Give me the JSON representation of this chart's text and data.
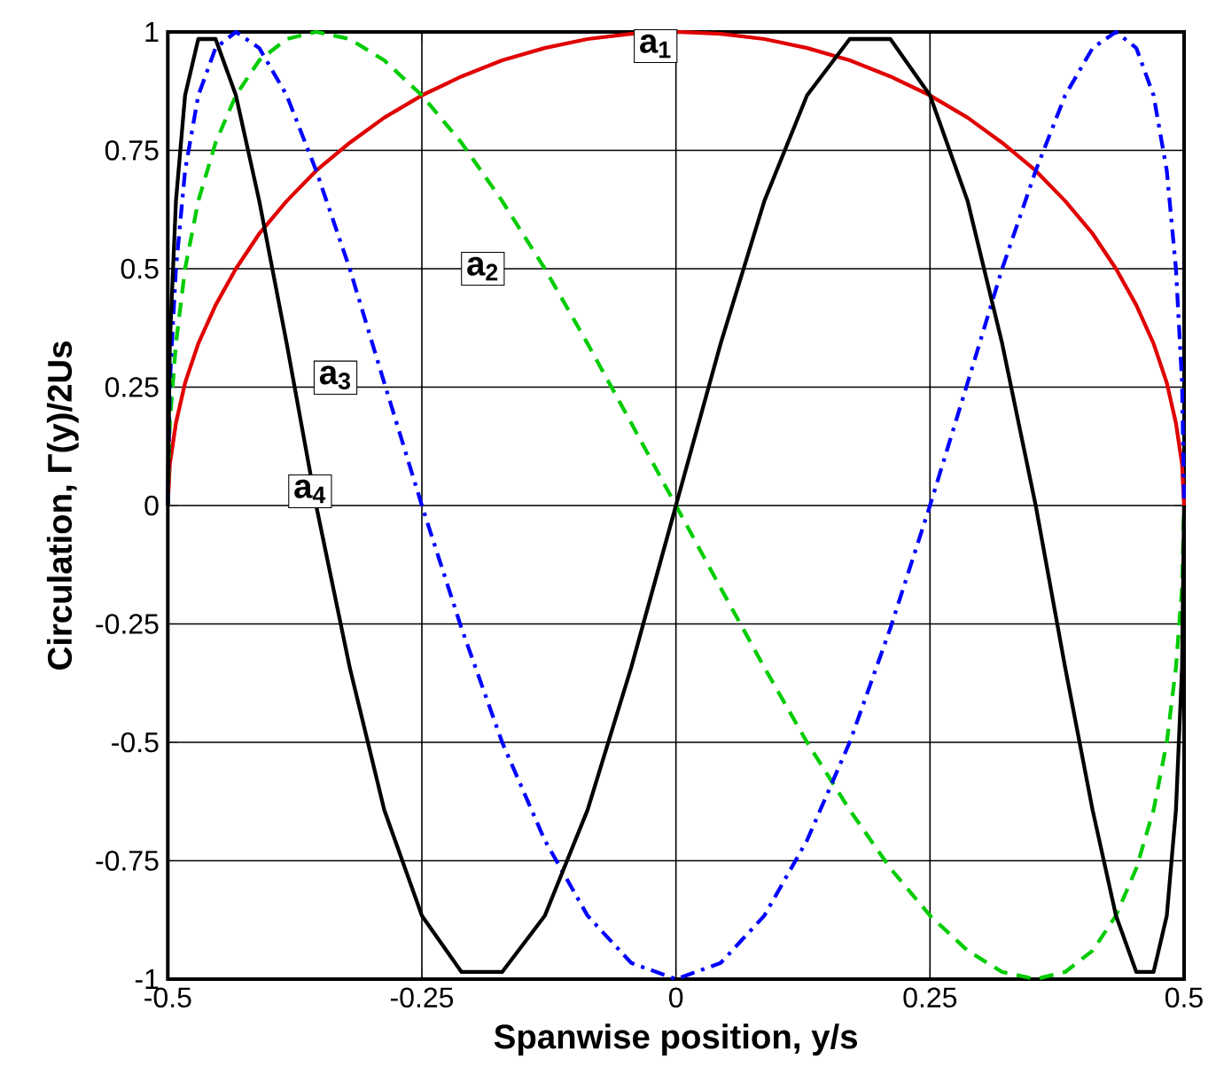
{
  "chart_data": {
    "type": "line",
    "xlabel": "Spanwise position, y/s",
    "ylabel": "Circulation, Γ(y)/2Us",
    "x": [
      -0.5,
      -0.498,
      -0.492,
      -0.483,
      -0.47,
      -0.453,
      -0.433,
      -0.41,
      -0.383,
      -0.354,
      -0.321,
      -0.287,
      -0.25,
      -0.211,
      -0.171,
      -0.129,
      -0.087,
      -0.044,
      0,
      0.044,
      0.087,
      0.129,
      0.171,
      0.211,
      0.25,
      0.287,
      0.321,
      0.354,
      0.383,
      0.41,
      0.433,
      0.453,
      0.47,
      0.483,
      0.492,
      0.498,
      0.5
    ],
    "series": [
      {
        "color": "#e00000",
        "line_style": "solid",
        "values": [
          0,
          0.087,
          0.174,
          0.259,
          0.342,
          0.423,
          0.5,
          0.574,
          0.643,
          0.707,
          0.766,
          0.819,
          0.866,
          0.906,
          0.94,
          0.966,
          0.985,
          0.996,
          1,
          0.996,
          0.985,
          0.966,
          0.94,
          0.906,
          0.866,
          0.819,
          0.766,
          0.707,
          0.643,
          0.574,
          0.5,
          0.423,
          0.342,
          0.259,
          0.174,
          0.087,
          0
        ]
      },
      {
        "color": "#00cc00",
        "line_style": "dashed",
        "values": [
          0,
          0.174,
          0.342,
          0.5,
          0.643,
          0.766,
          0.866,
          0.94,
          0.985,
          1,
          0.985,
          0.94,
          0.866,
          0.766,
          0.643,
          0.5,
          0.342,
          0.174,
          0,
          -0.174,
          -0.342,
          -0.5,
          -0.643,
          -0.766,
          -0.866,
          -0.94,
          -0.985,
          -1,
          -0.985,
          -0.94,
          -0.866,
          -0.766,
          -0.643,
          -0.5,
          -0.342,
          -0.174,
          0
        ]
      },
      {
        "color": "#0000ff",
        "line_style": "dashdot",
        "values": [
          0,
          0.259,
          0.5,
          0.707,
          0.866,
          0.966,
          1,
          0.966,
          0.866,
          0.707,
          0.5,
          0.259,
          0,
          -0.259,
          -0.5,
          -0.707,
          -0.866,
          -0.966,
          -1,
          -0.966,
          -0.866,
          -0.707,
          -0.5,
          -0.259,
          0,
          0.259,
          0.5,
          0.707,
          0.866,
          0.966,
          1,
          0.966,
          0.866,
          0.707,
          0.5,
          0.259,
          0
        ]
      },
      {
        "color": "#000000",
        "line_style": "solid",
        "values": [
          0,
          0.342,
          0.643,
          0.866,
          0.985,
          0.985,
          0.866,
          0.643,
          0.342,
          0,
          -0.342,
          -0.643,
          -0.866,
          -0.985,
          -0.985,
          -0.866,
          -0.643,
          -0.342,
          0,
          0.342,
          0.643,
          0.866,
          0.985,
          0.985,
          0.866,
          0.643,
          0.342,
          0,
          -0.342,
          -0.643,
          -0.866,
          -0.985,
          -0.985,
          -0.866,
          -0.643,
          -0.342,
          0
        ]
      }
    ],
    "annotations": [
      {
        "text": "a$_{1}$",
        "x": -0.02,
        "y": 0.97
      },
      {
        "text": "a$_{2}$",
        "x": -0.19,
        "y": 0.5
      },
      {
        "text": "a$_{3}$",
        "x": -0.335,
        "y": 0.27
      },
      {
        "text": "a$_{4}$",
        "x": -0.36,
        "y": 0.03
      }
    ],
    "xlim": [
      -0.5,
      0.5
    ],
    "ylim": [
      -1,
      1
    ],
    "xticks": [
      -0.5,
      -0.25,
      0,
      0.25,
      0.5
    ],
    "yticks": [
      -1,
      -0.75,
      -0.5,
      -0.25,
      0,
      0.25,
      0.5,
      0.75,
      1
    ],
    "grid": true
  }
}
